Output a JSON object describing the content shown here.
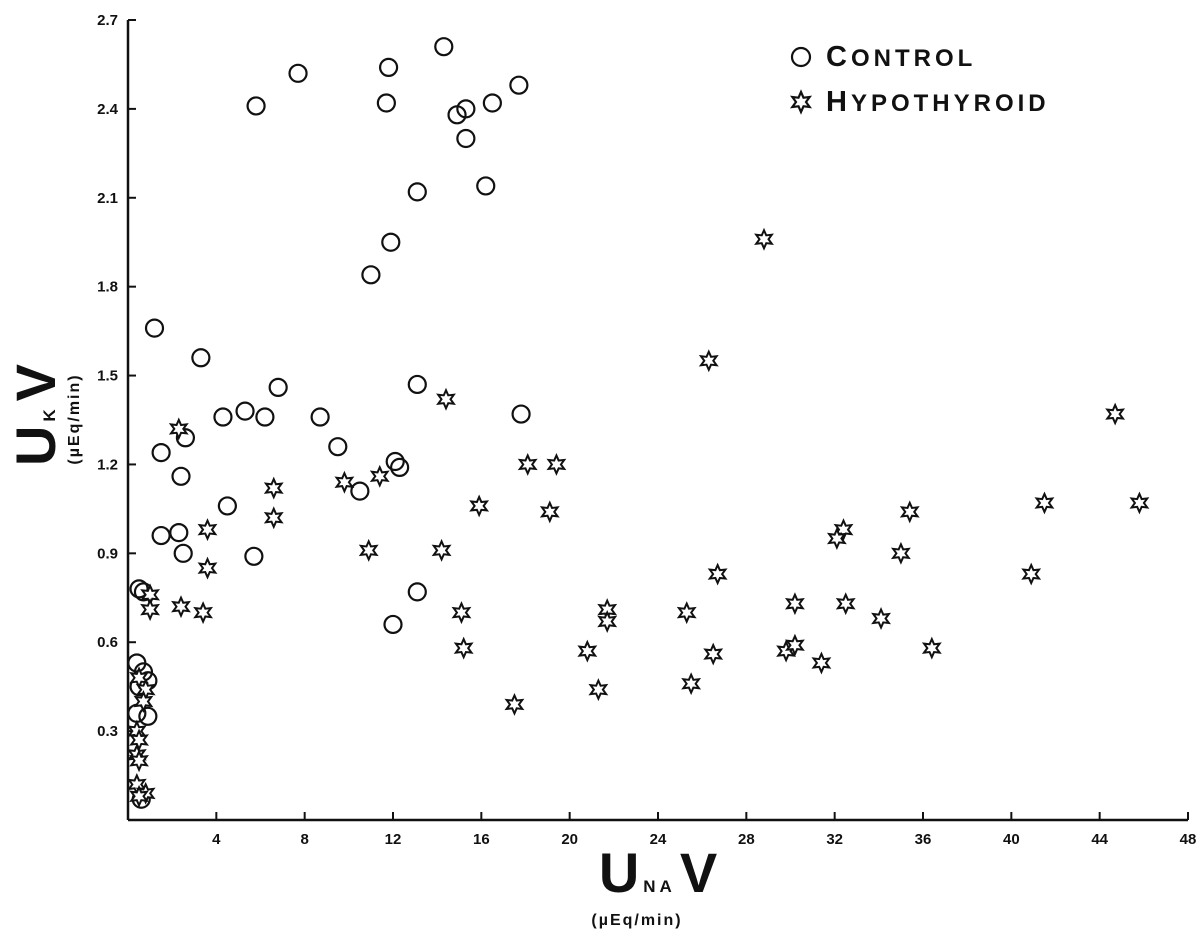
{
  "chart_data": {
    "type": "scatter",
    "title": "",
    "xlim": [
      0,
      48
    ],
    "ylim": [
      0,
      2.7
    ],
    "x_ticks": [
      "4",
      "8",
      "12",
      "16",
      "20",
      "24",
      "28",
      "32",
      "36",
      "40",
      "44",
      "48"
    ],
    "y_ticks": [
      "0.3",
      "0.6",
      "0.9",
      "1.2",
      "1.5",
      "1.8",
      "2.1",
      "2.4",
      "2.7"
    ],
    "x_tick_values": [
      4,
      8,
      12,
      16,
      20,
      24,
      28,
      32,
      36,
      40,
      44,
      48
    ],
    "y_tick_values": [
      0.3,
      0.6,
      0.9,
      1.2,
      1.5,
      1.8,
      2.1,
      2.4,
      2.7
    ],
    "xlabel": {
      "main": "U",
      "sub": "NA",
      "tail": "V",
      "units": "(µEq/min)"
    },
    "ylabel": {
      "main": "U",
      "sub": "K",
      "tail": "V",
      "units": "(µEq/min)"
    },
    "grid": false,
    "legend_position": "top-right",
    "series": [
      {
        "name": "Control",
        "marker": "circle",
        "color": "#111111",
        "points": [
          [
            14.3,
            2.61
          ],
          [
            7.7,
            2.52
          ],
          [
            11.8,
            2.54
          ],
          [
            17.7,
            2.48
          ],
          [
            5.8,
            2.41
          ],
          [
            11.7,
            2.42
          ],
          [
            14.9,
            2.38
          ],
          [
            15.3,
            2.4
          ],
          [
            16.5,
            2.42
          ],
          [
            15.3,
            2.3
          ],
          [
            13.1,
            2.12
          ],
          [
            16.2,
            2.14
          ],
          [
            11.9,
            1.95
          ],
          [
            11.0,
            1.84
          ],
          [
            1.2,
            1.66
          ],
          [
            3.3,
            1.56
          ],
          [
            6.8,
            1.46
          ],
          [
            13.1,
            1.47
          ],
          [
            17.8,
            1.37
          ],
          [
            4.3,
            1.36
          ],
          [
            5.3,
            1.38
          ],
          [
            6.2,
            1.36
          ],
          [
            8.7,
            1.36
          ],
          [
            2.6,
            1.29
          ],
          [
            9.5,
            1.26
          ],
          [
            1.5,
            1.24
          ],
          [
            12.1,
            1.21
          ],
          [
            12.3,
            1.19
          ],
          [
            10.5,
            1.11
          ],
          [
            2.4,
            1.16
          ],
          [
            4.5,
            1.06
          ],
          [
            1.5,
            0.96
          ],
          [
            2.3,
            0.97
          ],
          [
            2.5,
            0.9
          ],
          [
            5.7,
            0.89
          ],
          [
            13.1,
            0.77
          ],
          [
            12.0,
            0.66
          ],
          [
            0.5,
            0.78
          ],
          [
            0.7,
            0.77
          ],
          [
            0.4,
            0.53
          ],
          [
            0.7,
            0.5
          ],
          [
            0.9,
            0.47
          ],
          [
            0.5,
            0.45
          ],
          [
            0.4,
            0.36
          ],
          [
            0.9,
            0.35
          ],
          [
            0.6,
            0.07
          ]
        ]
      },
      {
        "name": "Hypothyroid",
        "marker": "star",
        "color": "#111111",
        "points": [
          [
            28.8,
            1.96
          ],
          [
            26.3,
            1.55
          ],
          [
            44.7,
            1.37
          ],
          [
            14.4,
            1.42
          ],
          [
            2.3,
            1.32
          ],
          [
            18.1,
            1.2
          ],
          [
            19.4,
            1.2
          ],
          [
            9.8,
            1.14
          ],
          [
            11.4,
            1.16
          ],
          [
            6.6,
            1.12
          ],
          [
            15.9,
            1.06
          ],
          [
            19.1,
            1.04
          ],
          [
            41.5,
            1.07
          ],
          [
            45.8,
            1.07
          ],
          [
            6.6,
            1.02
          ],
          [
            35.4,
            1.04
          ],
          [
            32.4,
            0.98
          ],
          [
            32.1,
            0.95
          ],
          [
            3.6,
            0.98
          ],
          [
            10.9,
            0.91
          ],
          [
            14.2,
            0.91
          ],
          [
            35.0,
            0.9
          ],
          [
            3.6,
            0.85
          ],
          [
            26.7,
            0.83
          ],
          [
            40.9,
            0.83
          ],
          [
            1.0,
            0.76
          ],
          [
            1.0,
            0.71
          ],
          [
            2.4,
            0.72
          ],
          [
            3.4,
            0.7
          ],
          [
            15.1,
            0.7
          ],
          [
            21.7,
            0.71
          ],
          [
            25.3,
            0.7
          ],
          [
            30.2,
            0.73
          ],
          [
            32.5,
            0.73
          ],
          [
            21.7,
            0.67
          ],
          [
            34.1,
            0.68
          ],
          [
            15.2,
            0.58
          ],
          [
            20.8,
            0.57
          ],
          [
            26.5,
            0.56
          ],
          [
            29.8,
            0.57
          ],
          [
            30.2,
            0.59
          ],
          [
            31.4,
            0.53
          ],
          [
            36.4,
            0.58
          ],
          [
            21.3,
            0.44
          ],
          [
            25.5,
            0.46
          ],
          [
            17.5,
            0.39
          ],
          [
            0.5,
            0.48
          ],
          [
            0.8,
            0.44
          ],
          [
            0.7,
            0.4
          ],
          [
            0.4,
            0.3
          ],
          [
            0.5,
            0.27
          ],
          [
            0.4,
            0.22
          ],
          [
            0.5,
            0.2
          ],
          [
            0.4,
            0.12
          ],
          [
            0.8,
            0.09
          ],
          [
            0.5,
            0.08
          ]
        ]
      }
    ]
  }
}
